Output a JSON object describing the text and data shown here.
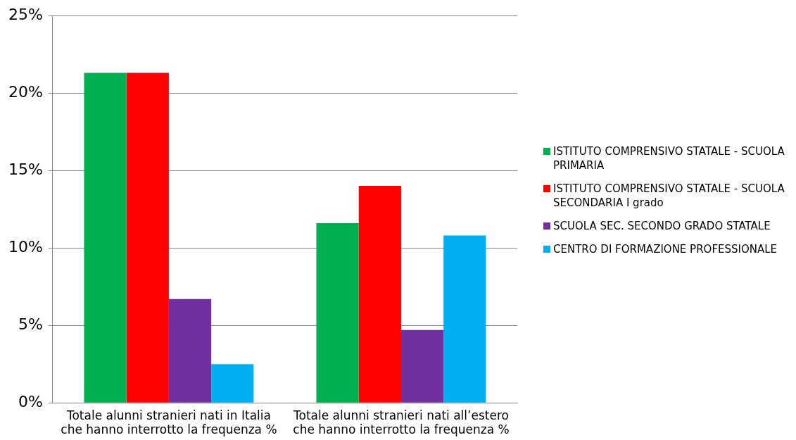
{
  "chart_data": {
    "type": "bar",
    "categories": [
      "Totale alunni stranieri nati in Italia che hanno interrotto la frequenza %",
      "Totale alunni stranieri nati all’estero che hanno interrotto la frequenza %"
    ],
    "series": [
      {
        "name": "ISTITUTO COMPRENSIVO STATALE - SCUOLA PRIMARIA",
        "color": "#00b050",
        "values": [
          21.3,
          11.6
        ]
      },
      {
        "name": "ISTITUTO COMPRENSIVO STATALE - SCUOLA SECONDARIA I grado",
        "color": "#ff0000",
        "values": [
          21.3,
          14.0
        ]
      },
      {
        "name": "SCUOLA SEC. SECONDO GRADO STATALE",
        "color": "#7030a0",
        "values": [
          6.7,
          4.7
        ]
      },
      {
        "name": "CENTRO DI FORMAZIONE PROFESSIONALE",
        "color": "#00b0f0",
        "values": [
          2.5,
          10.8
        ]
      }
    ],
    "ylim": [
      0,
      25
    ],
    "yticks": [
      {
        "value": 0,
        "label": "0%"
      },
      {
        "value": 5,
        "label": "5%"
      },
      {
        "value": 10,
        "label": "10%"
      },
      {
        "value": 15,
        "label": "15%"
      },
      {
        "value": 20,
        "label": "20%"
      },
      {
        "value": 25,
        "label": "25%"
      }
    ],
    "grid": "y",
    "legend": "right"
  }
}
